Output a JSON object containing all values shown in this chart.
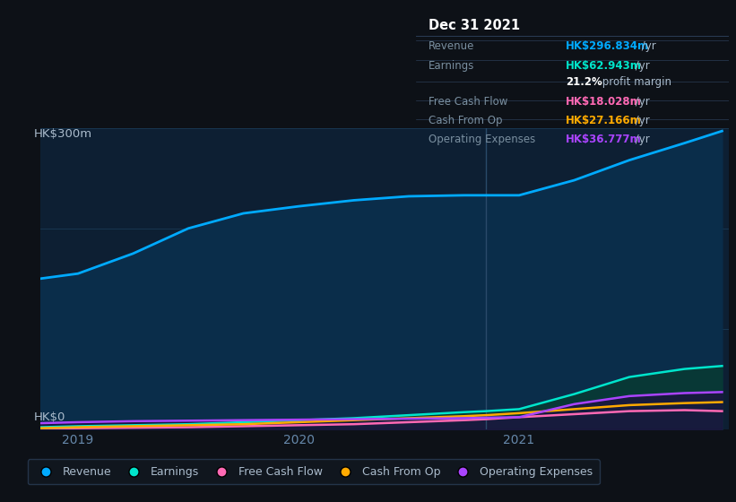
{
  "bg_color": "#0d1117",
  "plot_bg_color": "#0d1f33",
  "grid_color": "#1a3a55",
  "ylabel_top": "HK$300m",
  "ylabel_bottom": "HK$0",
  "x_years": [
    2018.83,
    2019.0,
    2019.25,
    2019.5,
    2019.75,
    2020.0,
    2020.25,
    2020.5,
    2020.75,
    2020.85,
    2021.0,
    2021.25,
    2021.5,
    2021.75,
    2021.92
  ],
  "revenue": [
    150,
    155,
    175,
    200,
    215,
    222,
    228,
    232,
    233,
    233,
    233,
    248,
    268,
    285,
    297
  ],
  "earnings": [
    2,
    3,
    4,
    5,
    7,
    9,
    11,
    14,
    17,
    18,
    20,
    35,
    52,
    60,
    63
  ],
  "free_cash_flow": [
    0.5,
    1,
    1.5,
    2,
    3,
    4,
    5,
    7,
    9,
    10,
    12,
    15,
    18,
    19,
    18
  ],
  "cash_from_op": [
    1,
    2,
    3,
    4,
    5,
    7,
    9,
    11,
    13,
    14,
    16,
    20,
    24,
    26,
    27
  ],
  "operating_expenses": [
    6,
    7,
    8,
    8.5,
    9,
    9.5,
    10,
    10.5,
    11,
    11.5,
    12,
    25,
    33,
    36,
    37
  ],
  "revenue_color": "#00aaff",
  "earnings_color": "#00e5cc",
  "free_cash_flow_color": "#ff69b4",
  "cash_from_op_color": "#ffaa00",
  "operating_expenses_color": "#aa44ff",
  "divider_x": 2020.85,
  "ylim": [
    0,
    300
  ],
  "xlim_start": 2018.83,
  "xlim_end": 2021.95,
  "info_box": {
    "title": "Dec 31 2021",
    "rows": [
      {
        "label": "Revenue",
        "value": "HK$296.834m",
        "value_color": "#00aaff",
        "suffix": " /yr",
        "is_sub": false
      },
      {
        "label": "Earnings",
        "value": "HK$62.943m",
        "value_color": "#00e5cc",
        "suffix": " /yr",
        "is_sub": false
      },
      {
        "label": "",
        "value": "21.2%",
        "value_color": "#ffffff",
        "suffix": " profit margin",
        "is_sub": true
      },
      {
        "label": "Free Cash Flow",
        "value": "HK$18.028m",
        "value_color": "#ff69b4",
        "suffix": " /yr",
        "is_sub": false
      },
      {
        "label": "Cash From Op",
        "value": "HK$27.166m",
        "value_color": "#ffaa00",
        "suffix": " /yr",
        "is_sub": false
      },
      {
        "label": "Operating Expenses",
        "value": "HK$36.777m",
        "value_color": "#aa44ff",
        "suffix": " /yr",
        "is_sub": false
      }
    ]
  }
}
